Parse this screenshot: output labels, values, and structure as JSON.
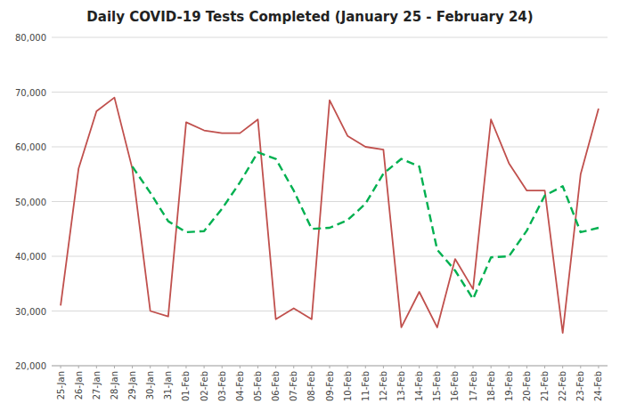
{
  "chart_data": {
    "type": "line",
    "title": "Daily COVID-19 Tests Completed (January 25 - February 24)",
    "categories": [
      "25-Jan",
      "26-Jan",
      "27-Jan",
      "28-Jan",
      "29-Jan",
      "30-Jan",
      "31-Jan",
      "01-Feb",
      "02-Feb",
      "03-Feb",
      "04-Feb",
      "05-Feb",
      "06-Feb",
      "07-Feb",
      "08-Feb",
      "09-Feb",
      "10-Feb",
      "11-Feb",
      "12-Feb",
      "13-Feb",
      "14-Feb",
      "15-Feb",
      "16-Feb",
      "17-Feb",
      "18-Feb",
      "19-Feb",
      "20-Feb",
      "21-Feb",
      "22-Feb",
      "23-Feb",
      "24-Feb"
    ],
    "series": [
      {
        "color": "#c0504d",
        "line_style": "solid",
        "values": [
          31000,
          56000,
          66500,
          69000,
          56000,
          30000,
          29000,
          64500,
          63000,
          62500,
          62500,
          65000,
          28500,
          30500,
          28500,
          68500,
          62000,
          60000,
          59500,
          27000,
          33500,
          27000,
          39500,
          34000,
          65000,
          57000,
          52000,
          52000,
          26000,
          55000,
          67000
        ]
      },
      {
        "color": "#00b050",
        "line_style": "dashed",
        "values": [
          null,
          null,
          null,
          null,
          56400,
          51600,
          46400,
          44400,
          44600,
          48700,
          53500,
          59000,
          57800,
          52000,
          45000,
          45200,
          46600,
          49600,
          55100,
          57800,
          56400,
          41200,
          37400,
          32200,
          39800,
          40000,
          44700,
          51100,
          52800,
          44400,
          45200
        ]
      }
    ],
    "ylim": [
      20000,
      80000
    ],
    "yticks": [
      {
        "value": 20000,
        "label": "20,000"
      },
      {
        "value": 30000,
        "label": "30,000"
      },
      {
        "value": 40000,
        "label": "40,000"
      },
      {
        "value": 50000,
        "label": "50,000"
      },
      {
        "value": 60000,
        "label": "60,000"
      },
      {
        "value": 70000,
        "label": "70,000"
      },
      {
        "value": 80000,
        "label": "80,000"
      }
    ],
    "grid": true
  }
}
